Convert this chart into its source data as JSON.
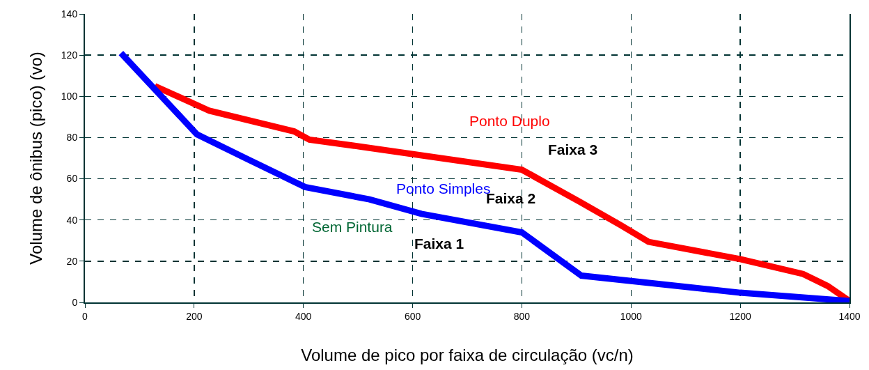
{
  "chart_data": {
    "type": "line",
    "xlabel": "Volume de pico por faixa de circulação (vc/n)",
    "ylabel": "Volume de ônibus (pico) (vo)",
    "series": [
      {
        "name": "Ponto Duplo",
        "color": "#ff0000",
        "x": [
          128,
          228,
          383,
          411,
          505,
          800,
          905,
          981,
          1032,
          1200,
          1315,
          1360,
          1400
        ],
        "values": [
          105,
          93,
          83,
          79,
          75.6,
          64.4,
          49,
          37.5,
          29.4,
          21,
          13.8,
          8,
          0.7
        ]
      },
      {
        "name": "Ponto Simples",
        "color": "#0000ff",
        "x": [
          66,
          205,
          294,
          403,
          521,
          616,
          800,
          909,
          1200,
          1400
        ],
        "values": [
          121,
          81.6,
          70,
          56,
          50,
          43,
          34,
          13,
          4.7,
          0.7
        ]
      }
    ],
    "annotations": [
      "Sem Pintura",
      "Faixa 1",
      "Faixa 2",
      "Faixa 3"
    ],
    "xlim": [
      0,
      1400
    ],
    "xticks": [
      0,
      200,
      400,
      600,
      800,
      1000,
      1200,
      1400
    ],
    "ylim": [
      0,
      140
    ],
    "yticks": [
      0,
      20,
      40,
      60,
      80,
      100,
      120,
      140
    ],
    "grid": true,
    "legend": false,
    "marker": "none",
    "line_style": "solid"
  }
}
